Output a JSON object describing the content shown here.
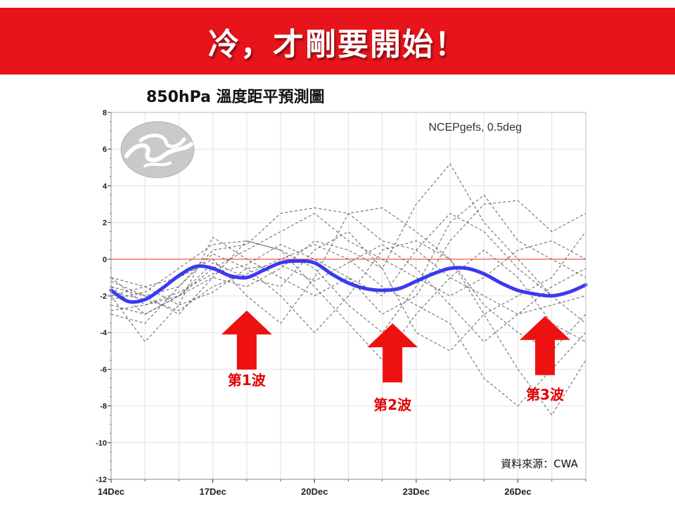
{
  "banner": {
    "title": "冷，才剛要開始！"
  },
  "chart_title": "850hPa 溫度距平預測圖",
  "model_label": "NCEPgefs, 0.5deg",
  "source_label": "資料來源：CWA",
  "colors": {
    "banner_bg": "#e8141b",
    "mean_line": "#3a3af0",
    "zero_line": "#ff6b6b",
    "members": "#555555",
    "arrows": "#ee1111",
    "wave_text": "#e00000"
  },
  "chart_data": {
    "type": "line",
    "title": "850hPa 溫度距平預測圖",
    "xlabel": "",
    "ylabel": "",
    "x_ticks": [
      "14Dec",
      "17Dec",
      "20Dec",
      "23Dec",
      "26Dec"
    ],
    "x_tick_days": [
      14,
      17,
      20,
      23,
      26
    ],
    "xlim": [
      14,
      28
    ],
    "ylim": [
      -12,
      8
    ],
    "y_ticks": [
      -12,
      -10,
      -8,
      -6,
      -4,
      -2,
      0,
      2,
      4,
      6,
      8
    ],
    "grid": true,
    "reference_line": 0,
    "series": [
      {
        "role": "ensemble-mean",
        "x": [
          14,
          14.5,
          15,
          15.5,
          16,
          16.5,
          17,
          17.5,
          18,
          18.5,
          19,
          19.5,
          20,
          20.5,
          21,
          21.5,
          22,
          22.5,
          23,
          23.5,
          24,
          24.5,
          25,
          25.5,
          26,
          26.5,
          27,
          27.5,
          28
        ],
        "values": [
          -1.7,
          -2.3,
          -2.2,
          -1.6,
          -0.9,
          -0.4,
          -0.5,
          -0.9,
          -1.0,
          -0.6,
          -0.2,
          -0.1,
          -0.2,
          -0.8,
          -1.3,
          -1.6,
          -1.7,
          -1.6,
          -1.2,
          -0.8,
          -0.5,
          -0.5,
          -0.8,
          -1.3,
          -1.7,
          -1.9,
          -2.0,
          -1.8,
          -1.4
        ]
      }
    ],
    "member_x": [
      14,
      15,
      16,
      17,
      18,
      19,
      20,
      21,
      22,
      23,
      24,
      25,
      26,
      27,
      28
    ],
    "members": [
      [
        -1.2,
        -2.0,
        -1.5,
        0.5,
        0.8,
        2.5,
        2.8,
        2.5,
        1.0,
        0.5,
        -1.0,
        -2.0,
        -3.0,
        -2.5,
        -2.0
      ],
      [
        -2.5,
        -3.0,
        -2.0,
        -1.0,
        -1.5,
        -0.5,
        1.0,
        0.5,
        -0.5,
        3.0,
        5.2,
        2.0,
        0.0,
        -2.0,
        -3.5
      ],
      [
        -2.0,
        -4.5,
        -2.5,
        1.2,
        0.0,
        -1.0,
        -2.0,
        -1.0,
        -3.0,
        -2.0,
        1.0,
        3.0,
        3.2,
        1.5,
        2.5
      ],
      [
        -1.5,
        -2.0,
        -3.0,
        -1.0,
        1.0,
        0.5,
        -1.5,
        -3.5,
        -5.5,
        -3.0,
        -1.0,
        0.5,
        -1.0,
        -3.5,
        -4.5
      ],
      [
        -2.0,
        -1.5,
        -1.0,
        0.0,
        -2.0,
        -3.5,
        -1.0,
        2.5,
        2.8,
        1.5,
        0.0,
        -3.0,
        -6.0,
        -8.5,
        -5.5
      ],
      [
        -1.0,
        -2.5,
        -2.0,
        -0.5,
        0.5,
        1.5,
        2.5,
        1.0,
        0.0,
        -1.0,
        -2.0,
        -1.0,
        0.5,
        1.0,
        0.0
      ],
      [
        -3.0,
        -3.5,
        -1.5,
        0.3,
        -0.5,
        -2.0,
        -4.0,
        -2.0,
        0.5,
        1.0,
        0.0,
        -2.5,
        -4.0,
        -5.0,
        -3.0
      ],
      [
        -1.8,
        -2.2,
        -2.8,
        -1.5,
        -0.8,
        0.0,
        0.8,
        0.0,
        -1.5,
        -2.5,
        -3.5,
        -6.5,
        -8.0,
        -6.0,
        -4.0
      ],
      [
        -2.2,
        -1.8,
        -0.5,
        0.8,
        1.0,
        0.5,
        -0.5,
        -2.5,
        -4.0,
        -1.5,
        2.0,
        3.5,
        1.0,
        0.0,
        -1.0
      ],
      [
        -1.5,
        -3.0,
        -2.0,
        -0.2,
        -1.0,
        -1.5,
        0.5,
        1.5,
        -0.5,
        -4.0,
        -5.0,
        -3.0,
        -2.0,
        -1.0,
        1.5
      ],
      [
        -2.8,
        -2.5,
        -1.8,
        -0.8,
        -0.3,
        0.8,
        0.0,
        -1.0,
        -2.0,
        0.5,
        2.5,
        1.5,
        -0.5,
        -2.0,
        -1.5
      ],
      [
        -1.0,
        -1.5,
        -2.5,
        -1.8,
        -0.5,
        -0.3,
        -1.2,
        -0.2,
        0.8,
        -0.5,
        -2.5,
        -4.5,
        -3.0,
        -1.5,
        -0.5
      ]
    ],
    "annotations": [
      {
        "label": "第1波",
        "x": 18.0,
        "y_tip": -2.8
      },
      {
        "label": "第2波",
        "x": 22.3,
        "y_tip": -3.5
      },
      {
        "label": "第3波",
        "x": 26.8,
        "y_tip": -3.1
      }
    ]
  }
}
